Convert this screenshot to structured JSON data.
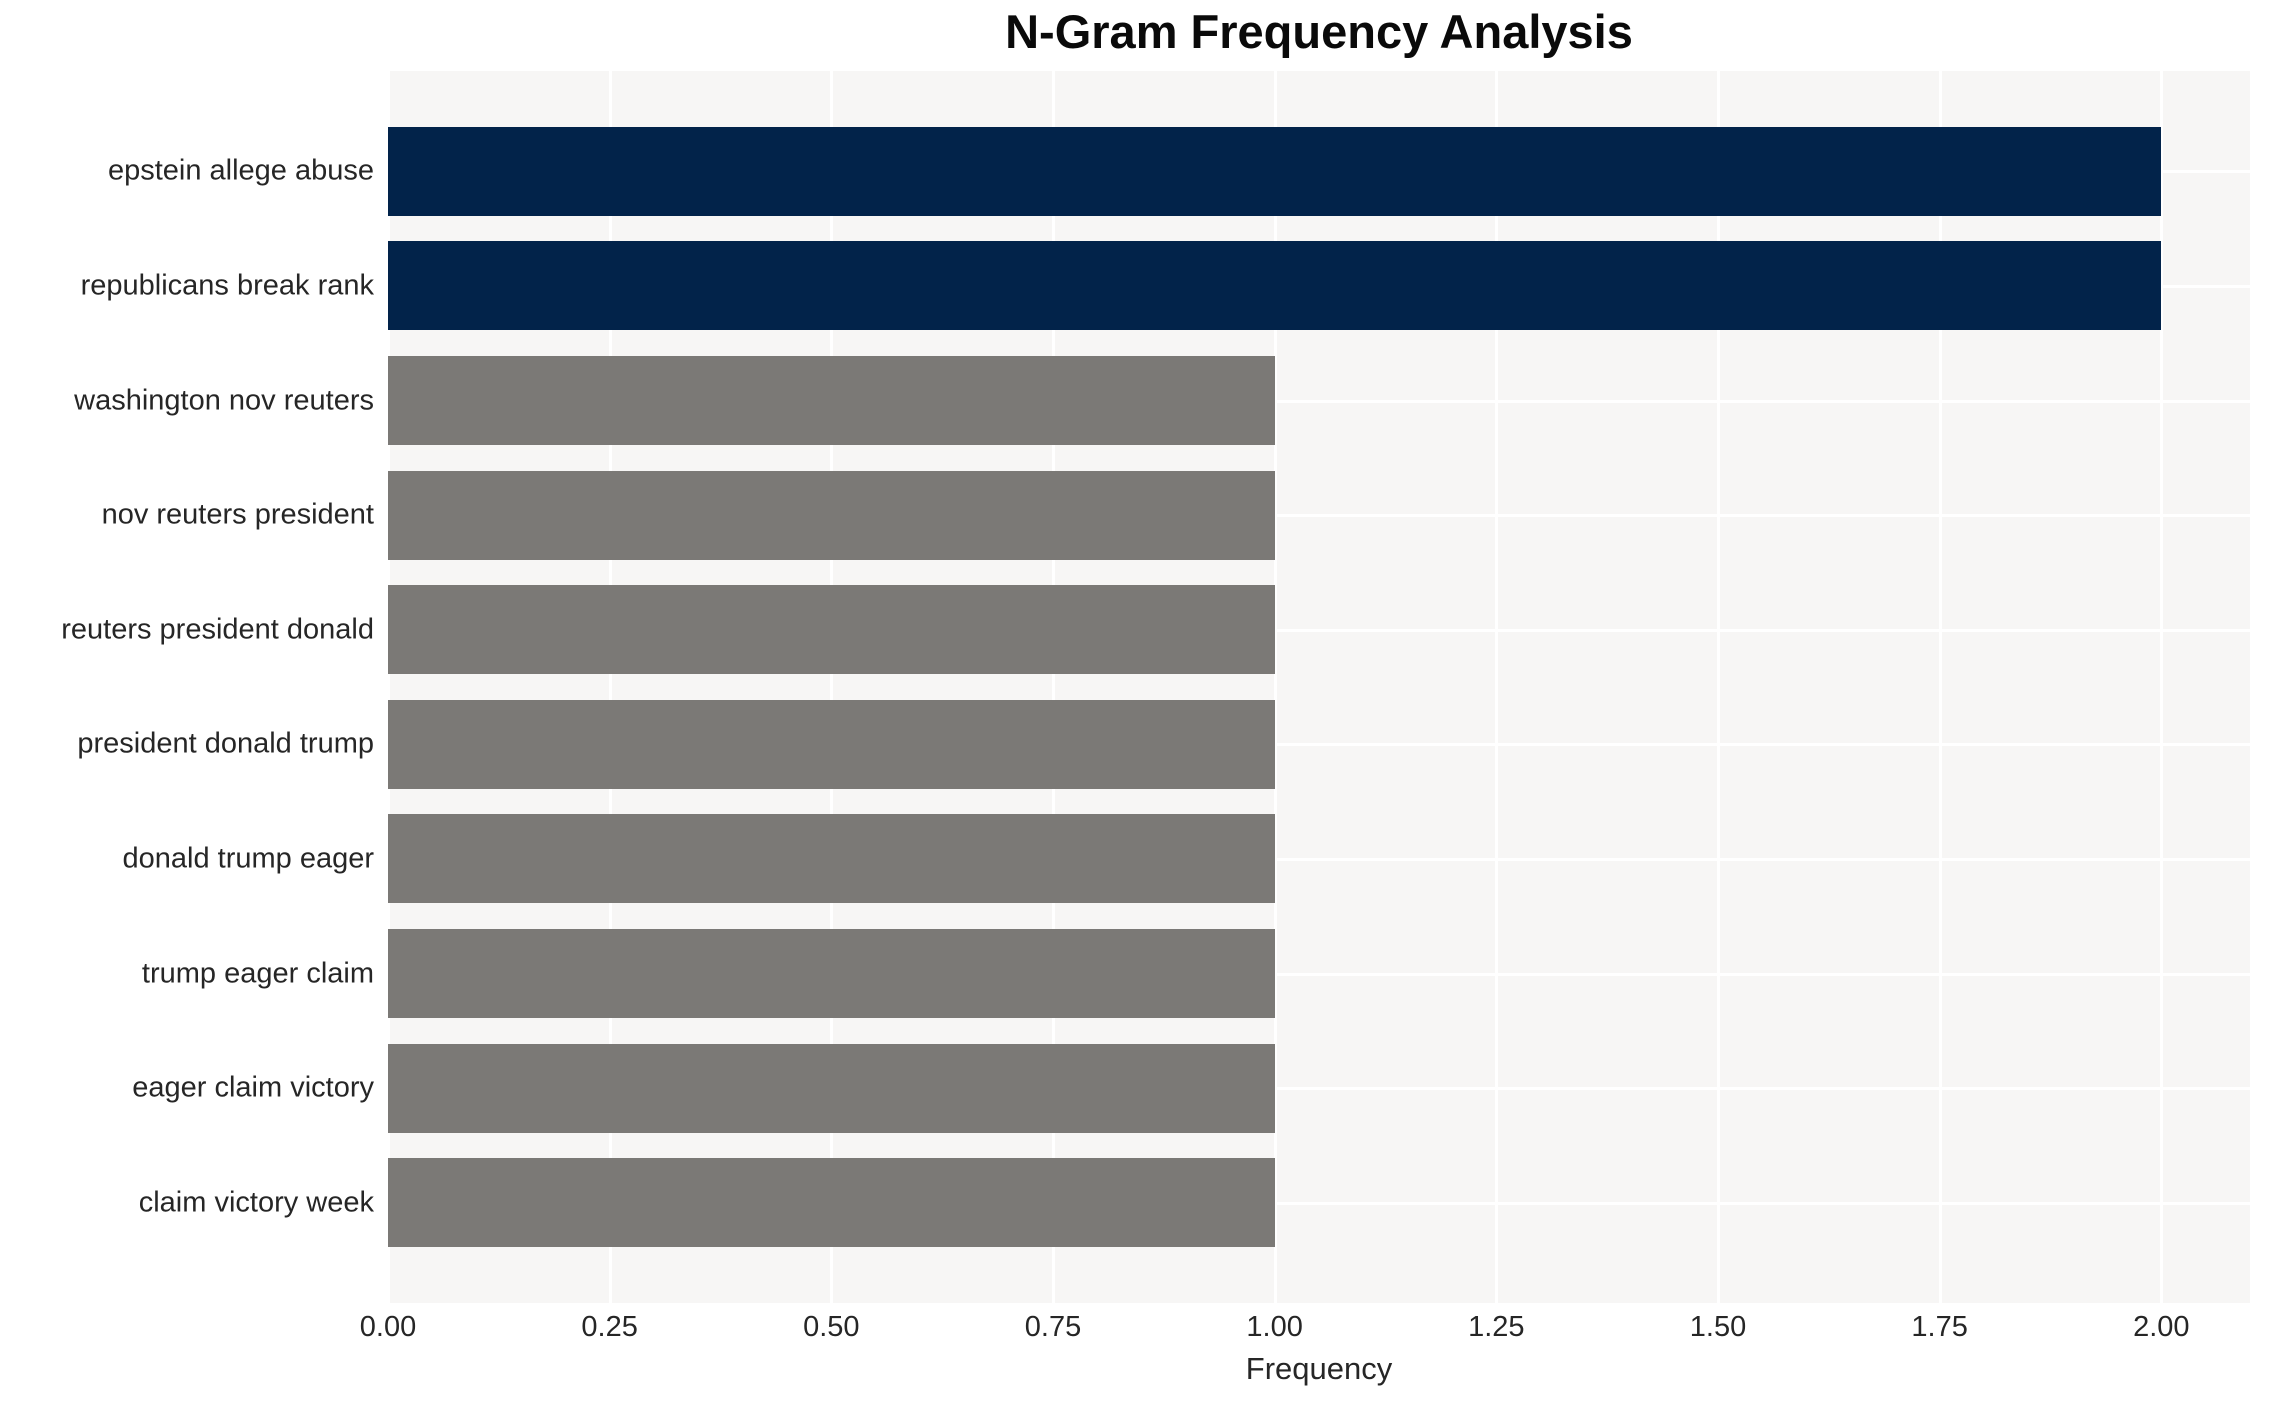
{
  "chart_data": {
    "type": "bar",
    "orientation": "horizontal",
    "title": "N-Gram Frequency Analysis",
    "xlabel": "Frequency",
    "ylabel": "",
    "categories": [
      "epstein allege abuse",
      "republicans break rank",
      "washington nov reuters",
      "nov reuters president",
      "reuters president donald",
      "president donald trump",
      "donald trump eager",
      "trump eager claim",
      "eager claim victory",
      "claim victory week"
    ],
    "values": [
      2,
      2,
      1,
      1,
      1,
      1,
      1,
      1,
      1,
      1
    ],
    "bar_colors": [
      "#02234a",
      "#02234a",
      "#7b7976",
      "#7b7976",
      "#7b7976",
      "#7b7976",
      "#7b7976",
      "#7b7976",
      "#7b7976",
      "#7b7976"
    ],
    "xlim": [
      0,
      2.1
    ],
    "xticks": {
      "values": [
        0,
        0.25,
        0.5,
        0.75,
        1.0,
        1.25,
        1.5,
        1.75,
        2.0
      ],
      "labels": [
        "0.00",
        "0.25",
        "0.50",
        "0.75",
        "1.00",
        "1.25",
        "1.50",
        "1.75",
        "2.00"
      ]
    },
    "grid": true,
    "legend": false,
    "colors": {
      "highlight_bar": "#02234a",
      "default_bar": "#7b7976",
      "plot_background": "#f7f6f5",
      "gridline": "#ffffff",
      "tick_text": "#262626",
      "title_text": "#0a0a0a"
    }
  }
}
